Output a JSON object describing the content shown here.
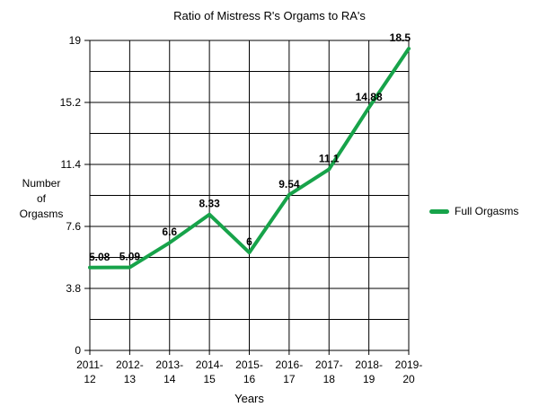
{
  "title": "Ratio of Mistress R's Orgams to RA's",
  "ylabel_lines": [
    "Number",
    "of",
    "Orgasms"
  ],
  "chart_data": {
    "type": "line",
    "title": "Ratio of Mistress R's Orgams to RA's",
    "xlabel": "Years",
    "ylabel": "Number of Orgasms",
    "categories": [
      "2011-12",
      "2012-13",
      "2013-14",
      "2014-15",
      "2015-16",
      "2016-17",
      "2017-18",
      "2018-19",
      "2019-20"
    ],
    "series": [
      {
        "name": "Full Orgasms",
        "color": "#17A34A",
        "values": [
          5.08,
          5.09,
          6.6,
          8.33,
          6,
          9.54,
          11.1,
          14.88,
          18.5
        ]
      }
    ],
    "ylim": [
      0,
      19
    ],
    "yticks": [
      0,
      3.8,
      7.6,
      11.4,
      15.2,
      19
    ],
    "minor_grid_step": 1.9,
    "grid": true,
    "grid_color": "#000000",
    "text_color": "#000000",
    "legend_position": "right",
    "data_labels": true
  }
}
